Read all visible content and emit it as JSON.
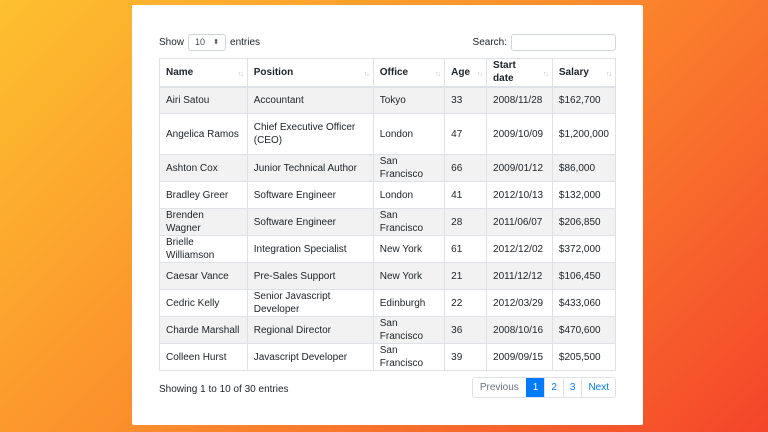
{
  "controls": {
    "show_label": "Show",
    "length_value": "10",
    "entries_label": "entries",
    "search_label": "Search:",
    "search_value": ""
  },
  "table": {
    "columns": [
      "Name",
      "Position",
      "Office",
      "Age",
      "Start date",
      "Salary"
    ],
    "rows": [
      [
        "Airi Satou",
        "Accountant",
        "Tokyo",
        "33",
        "2008/11/28",
        "$162,700"
      ],
      [
        "Angelica Ramos",
        "Chief Executive Officer (CEO)",
        "London",
        "47",
        "2009/10/09",
        "$1,200,000"
      ],
      [
        "Ashton Cox",
        "Junior Technical Author",
        "San Francisco",
        "66",
        "2009/01/12",
        "$86,000"
      ],
      [
        "Bradley Greer",
        "Software Engineer",
        "London",
        "41",
        "2012/10/13",
        "$132,000"
      ],
      [
        "Brenden Wagner",
        "Software Engineer",
        "San Francisco",
        "28",
        "2011/06/07",
        "$206,850"
      ],
      [
        "Brielle Williamson",
        "Integration Specialist",
        "New York",
        "61",
        "2012/12/02",
        "$372,000"
      ],
      [
        "Caesar Vance",
        "Pre-Sales Support",
        "New York",
        "21",
        "2011/12/12",
        "$106,450"
      ],
      [
        "Cedric Kelly",
        "Senior Javascript Developer",
        "Edinburgh",
        "22",
        "2012/03/29",
        "$433,060"
      ],
      [
        "Charde Marshall",
        "Regional Director",
        "San Francisco",
        "36",
        "2008/10/16",
        "$470,600"
      ],
      [
        "Colleen Hurst",
        "Javascript Developer",
        "San Francisco",
        "39",
        "2009/09/15",
        "$205,500"
      ]
    ]
  },
  "footer": {
    "info": "Showing 1 to 10 of 30 entries",
    "pagination": [
      "Previous",
      "1",
      "2",
      "3",
      "Next"
    ],
    "active_page": "1"
  },
  "colors": {
    "accent": "#007bff",
    "gradient_start": "#fdc02f",
    "gradient_end": "#f4452b"
  }
}
